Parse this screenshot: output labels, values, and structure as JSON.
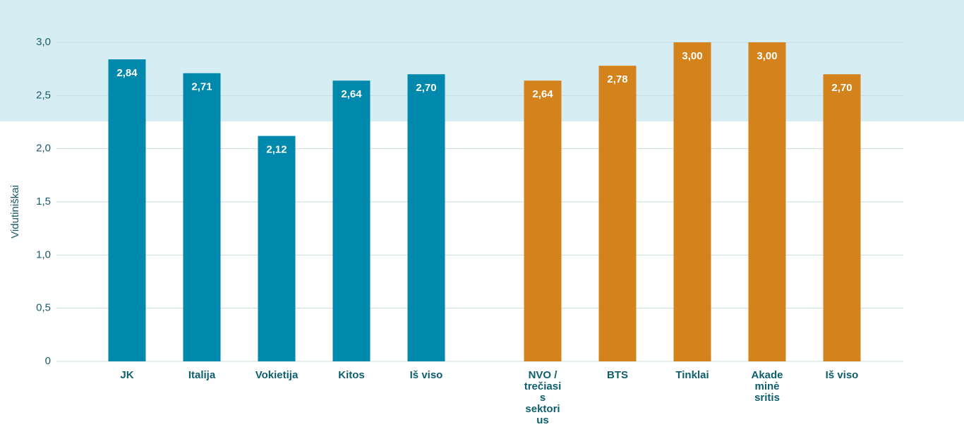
{
  "chart_data": {
    "type": "bar",
    "y_label": "Vidutiniškai",
    "ylim": [
      0,
      3
    ],
    "yticks": [
      0,
      {
        "value": 0.5,
        "label": "0,5"
      },
      {
        "value": 1,
        "label": "1,0"
      },
      {
        "value": 1.5,
        "label": "1,5"
      },
      {
        "value": 2,
        "label": "2,0"
      },
      {
        "value": 2.5,
        "label": "2,5"
      },
      {
        "value": 3,
        "label": "3,0"
      }
    ],
    "grid": true,
    "groups": [
      {
        "color": "#0089ad",
        "categories": [
          "JK",
          "Italija",
          "Vokietija",
          "Kitos",
          "Iš viso"
        ],
        "values": [
          2.84,
          2.71,
          2.12,
          2.64,
          2.7
        ],
        "value_labels": [
          "2,84",
          "2,71",
          "2,12",
          "2,64",
          "2,70"
        ]
      },
      {
        "color": "#d4821c",
        "categories": [
          "NVO / trečiasis sektorius",
          "BTS",
          "Tinklai",
          "Akademinė sritis",
          "Iš viso"
        ],
        "values": [
          2.64,
          2.78,
          3.0,
          3.0,
          2.7
        ],
        "value_labels": [
          "2,64",
          "2,78",
          "3,00",
          "3,00",
          "2,70"
        ]
      }
    ]
  }
}
